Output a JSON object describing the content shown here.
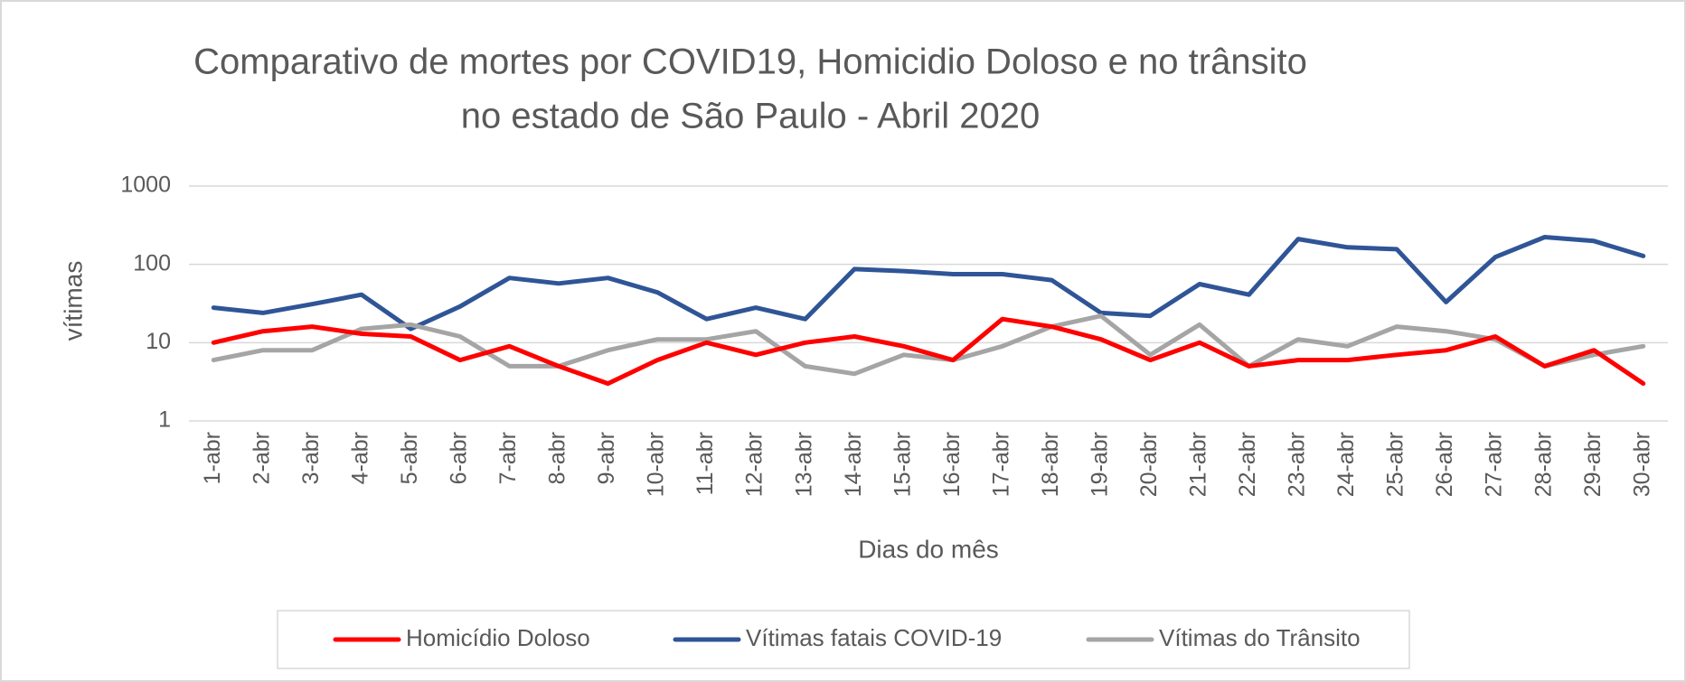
{
  "chart_data": {
    "type": "line",
    "title": [
      "Comparativo de mortes por COVID19, Homicidio Doloso e no trânsito",
      "no estado de São Paulo - Abril 2020"
    ],
    "x_label": "Dias do mês",
    "y_label": "vítimas",
    "categories": [
      "1-abr",
      "2-abr",
      "3-abr",
      "4-abr",
      "5-abr",
      "6-abr",
      "7-abr",
      "8-abr",
      "9-abr",
      "10-abr",
      "11-abr",
      "12-abr",
      "13-abr",
      "14-abr",
      "15-abr",
      "16-abr",
      "17-abr",
      "18-abr",
      "19-abr",
      "20-abr",
      "21-abr",
      "22-abr",
      "23-abr",
      "24-abr",
      "25-abr",
      "26-abr",
      "27-abr",
      "28-abr",
      "29-abr",
      "30-abr"
    ],
    "series": [
      {
        "name": "Homicídio Doloso",
        "color": "#ff0000",
        "values": [
          10,
          14,
          16,
          13,
          12,
          6,
          9,
          5,
          3,
          6,
          10,
          7,
          10,
          12,
          9,
          6,
          20,
          16,
          11,
          6,
          10,
          5,
          6,
          6,
          7,
          8,
          12,
          5,
          8,
          3
        ]
      },
      {
        "name": "Vítimas fatais COVID-19",
        "color": "#2f5597",
        "values": [
          28,
          24,
          31,
          41,
          15,
          29,
          67,
          57,
          67,
          44,
          20,
          28,
          20,
          87,
          82,
          75,
          75,
          63,
          24,
          22,
          56,
          41,
          211,
          165,
          156,
          33,
          124,
          223,
          199,
          128
        ]
      },
      {
        "name": "Vítimas do Trânsito",
        "color": "#a5a5a5",
        "values": [
          6,
          8,
          8,
          15,
          17,
          12,
          5,
          5,
          8,
          11,
          11,
          14,
          5,
          4,
          7,
          6,
          9,
          16,
          22,
          7,
          17,
          5,
          11,
          9,
          16,
          14,
          11,
          5,
          7,
          9
        ]
      }
    ],
    "ylim": [
      1,
      1000
    ],
    "yticks": [
      1,
      10,
      100,
      1000
    ],
    "log_y": true,
    "grid": true,
    "legend": "bottom"
  }
}
